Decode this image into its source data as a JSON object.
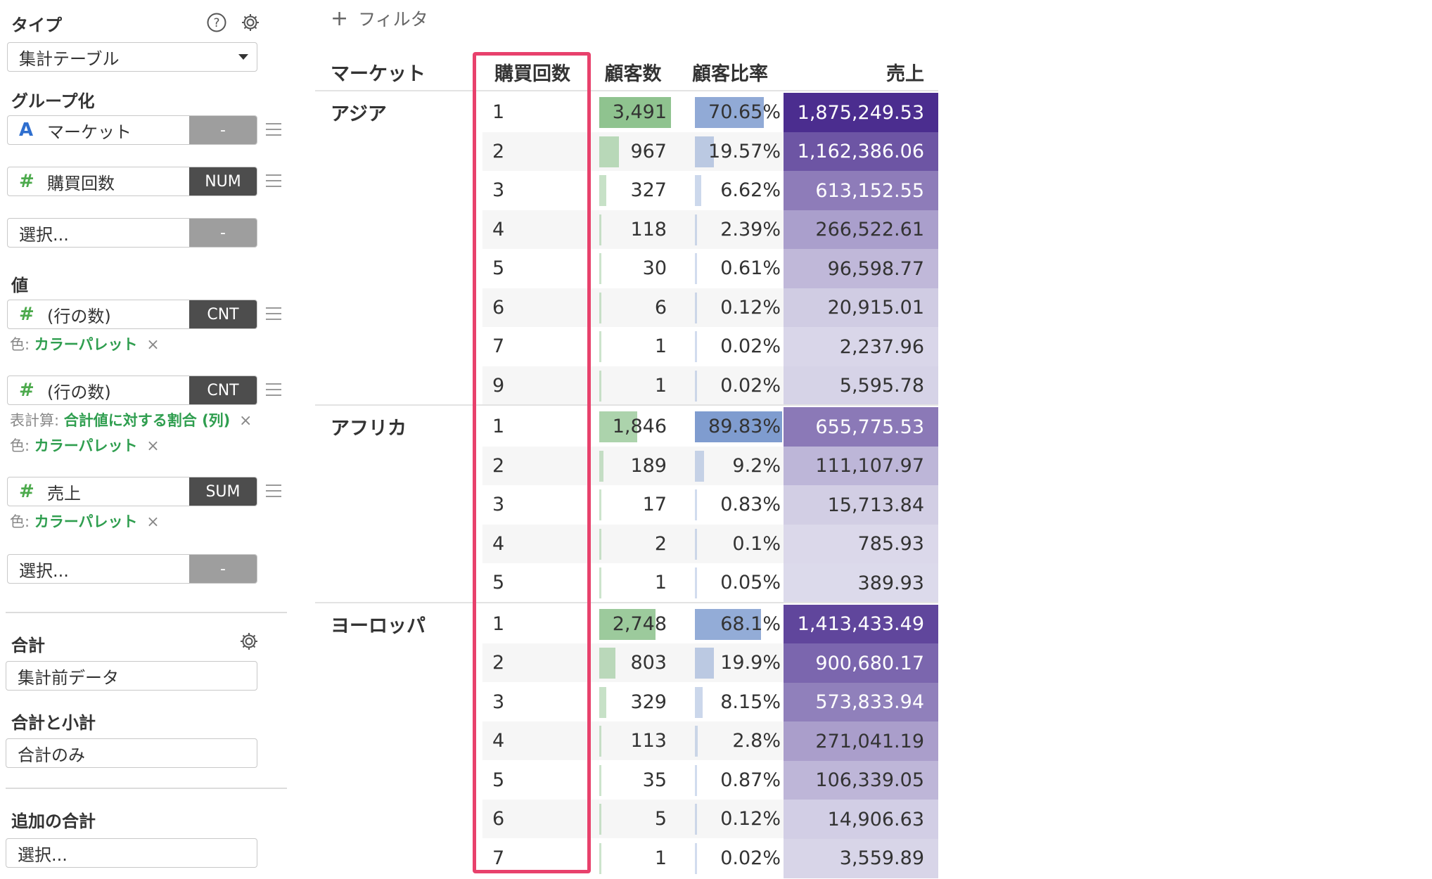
{
  "panel": {
    "type_label": "タイプ",
    "type_value": "集計テーブル",
    "group_label": "グループ化",
    "group_fields": [
      {
        "name": "マーケット",
        "tag": "-"
      },
      {
        "name": "購買回数",
        "tag": "NUM"
      },
      {
        "name": "選択...",
        "tag": "-"
      }
    ],
    "value_label": "値",
    "value_fields": [
      {
        "name": "(行の数)",
        "tag": "CNT"
      },
      {
        "name": "(行の数)",
        "tag": "CNT"
      },
      {
        "name": "売上",
        "tag": "SUM"
      },
      {
        "name": "選択...",
        "tag": "-"
      }
    ],
    "color_prefix": "色:",
    "color_value": "カラーパレット",
    "calc_prefix": "表計算:",
    "calc_value": "合計値に対する割合 (列)",
    "remove_glyph": "×",
    "total_label": "合計",
    "total_value": "集計前データ",
    "subtotal_label": "合計と小計",
    "subtotal_value": "合計のみ",
    "extra_label": "追加の合計",
    "extra_value": "選択..."
  },
  "filter": {
    "plus": "+",
    "label": "フィルタ"
  },
  "table": {
    "headers": {
      "market": "マーケット",
      "count": "購買回数",
      "customers": "顧客数",
      "ratio": "顧客比率",
      "sales": "売上"
    },
    "groups": [
      {
        "market": "アジア",
        "rows": [
          {
            "count": "1",
            "customers": "3,491",
            "ratio": "70.65%",
            "sales": "1,875,249.53"
          },
          {
            "count": "2",
            "customers": "967",
            "ratio": "19.57%",
            "sales": "1,162,386.06"
          },
          {
            "count": "3",
            "customers": "327",
            "ratio": "6.62%",
            "sales": "613,152.55"
          },
          {
            "count": "4",
            "customers": "118",
            "ratio": "2.39%",
            "sales": "266,522.61"
          },
          {
            "count": "5",
            "customers": "30",
            "ratio": "0.61%",
            "sales": "96,598.77"
          },
          {
            "count": "6",
            "customers": "6",
            "ratio": "0.12%",
            "sales": "20,915.01"
          },
          {
            "count": "7",
            "customers": "1",
            "ratio": "0.02%",
            "sales": "2,237.96"
          },
          {
            "count": "9",
            "customers": "1",
            "ratio": "0.02%",
            "sales": "5,595.78"
          }
        ]
      },
      {
        "market": "アフリカ",
        "rows": [
          {
            "count": "1",
            "customers": "1,846",
            "ratio": "89.83%",
            "sales": "655,775.53"
          },
          {
            "count": "2",
            "customers": "189",
            "ratio": "9.2%",
            "sales": "111,107.97"
          },
          {
            "count": "3",
            "customers": "17",
            "ratio": "0.83%",
            "sales": "15,713.84"
          },
          {
            "count": "4",
            "customers": "2",
            "ratio": "0.1%",
            "sales": "785.93"
          },
          {
            "count": "5",
            "customers": "1",
            "ratio": "0.05%",
            "sales": "389.93"
          }
        ]
      },
      {
        "market": "ヨーロッパ",
        "rows": [
          {
            "count": "1",
            "customers": "2,748",
            "ratio": "68.1%",
            "sales": "1,413,433.49"
          },
          {
            "count": "2",
            "customers": "803",
            "ratio": "19.9%",
            "sales": "900,680.17"
          },
          {
            "count": "3",
            "customers": "329",
            "ratio": "8.15%",
            "sales": "573,833.94"
          },
          {
            "count": "4",
            "customers": "113",
            "ratio": "2.8%",
            "sales": "271,041.19"
          },
          {
            "count": "5",
            "customers": "35",
            "ratio": "0.87%",
            "sales": "106,339.05"
          },
          {
            "count": "6",
            "customers": "5",
            "ratio": "0.12%",
            "sales": "14,906.63"
          },
          {
            "count": "7",
            "customers": "1",
            "ratio": "0.02%",
            "sales": "3,559.89"
          }
        ]
      }
    ],
    "colors": {
      "customers_bar": "#8fc38f",
      "ratio_bar": "#7f9ccf",
      "sales_max": "#4b2d8f",
      "sales_min": "#dcdaeb",
      "highlight": "#e8416c"
    }
  }
}
